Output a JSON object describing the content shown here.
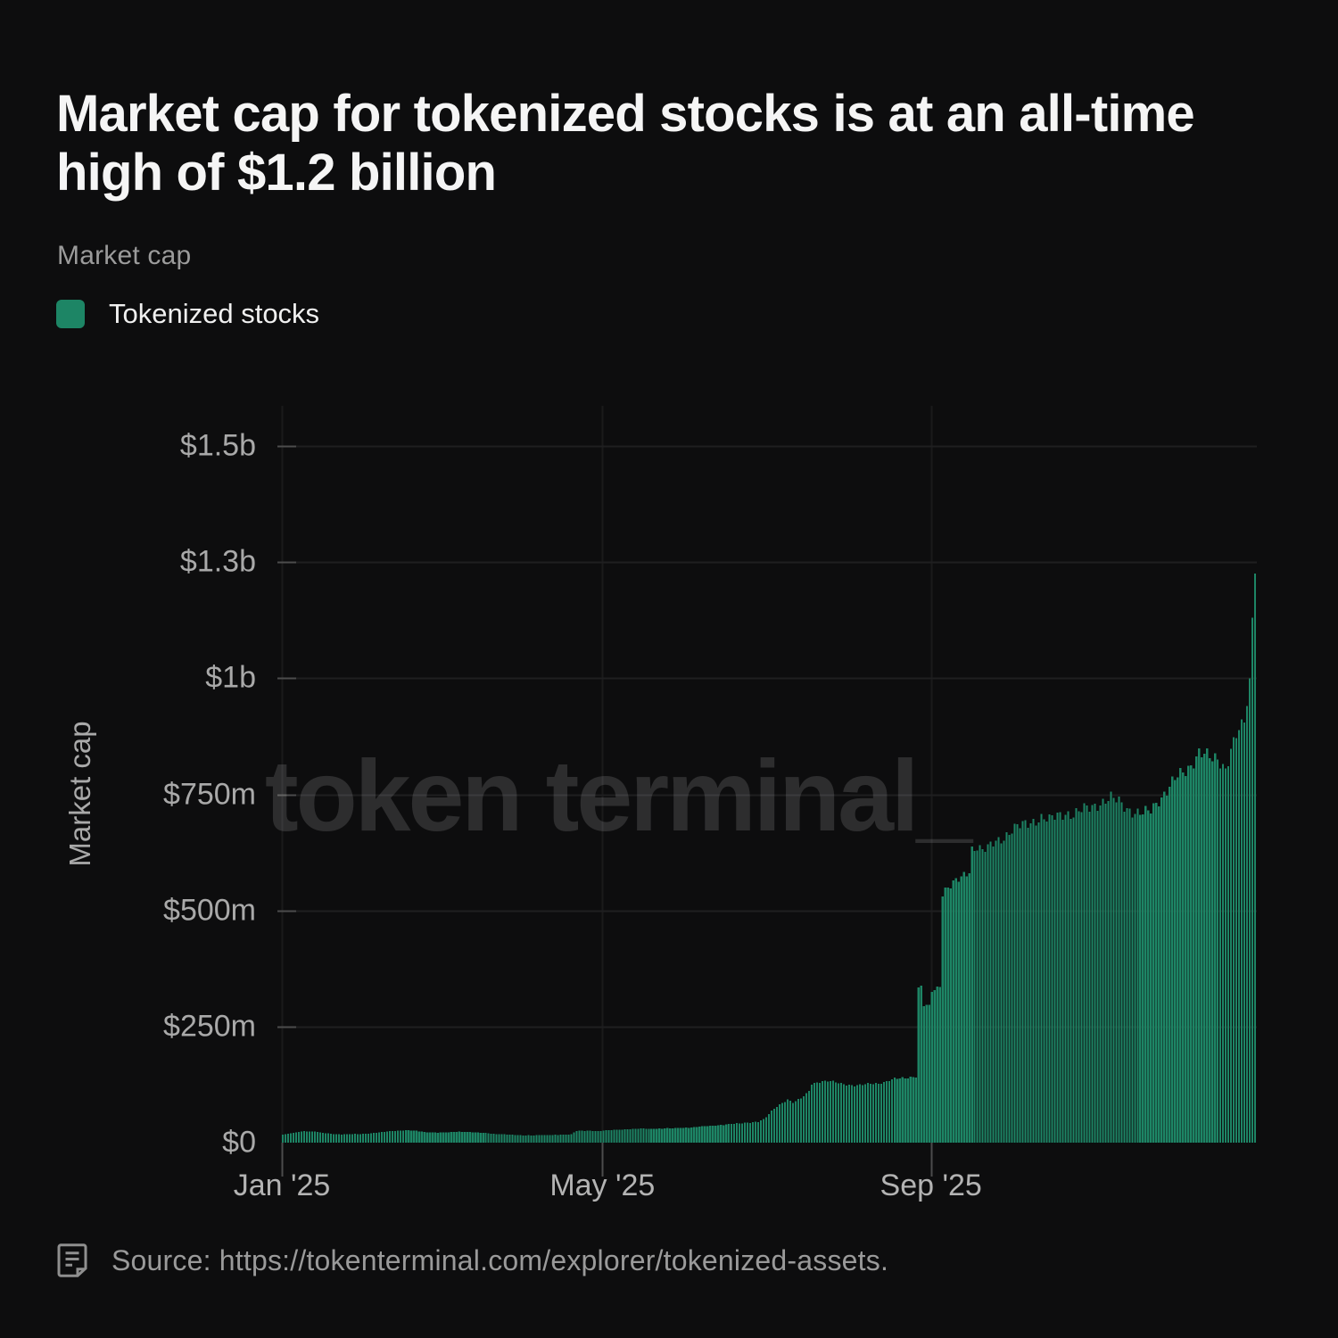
{
  "title": "Market cap for tokenized stocks is at an all-time high of $1.2 billion",
  "subtitle": "Market cap",
  "legend": {
    "label": "Tokenized stocks",
    "color": "#1d8565"
  },
  "watermark": "token terminal_",
  "footer": {
    "icon": "document-icon",
    "text": "Source: https://tokenterminal.com/explorer/tokenized-assets."
  },
  "colors": {
    "background": "#0d0d0e",
    "bar": "#1d8565",
    "gridline": "#1f1f20",
    "tick": "#4c4c4c",
    "month_line": "#1a1a1b",
    "axis_text": "#a9a9a9"
  },
  "chart_data": {
    "type": "bar",
    "title": "Market cap",
    "series_name": "Tokenized stocks",
    "ylabel": "Market cap",
    "unit": "USD millions",
    "x_start": "Jan 2025",
    "x_end": "Dec 2025",
    "days": 365,
    "ylim": [
      0,
      1500
    ],
    "grid": "horizontal-and-month-lines",
    "legend_position": "top-left",
    "yticks": [
      {
        "value": 0,
        "label": "$0"
      },
      {
        "value": 250,
        "label": "$250m"
      },
      {
        "value": 500,
        "label": "$500m"
      },
      {
        "value": 750,
        "label": "$750m"
      },
      {
        "value": 1000,
        "label": "$1b"
      },
      {
        "value": 1250,
        "label": "$1.3b"
      },
      {
        "value": 1500,
        "label": "$1.5b"
      }
    ],
    "xticks": [
      {
        "day": 0,
        "label": "Jan '25"
      },
      {
        "day": 120,
        "label": "May '25"
      },
      {
        "day": 243,
        "label": "Sep '25"
      }
    ],
    "anchors_day_value_musd": [
      [
        0,
        17
      ],
      [
        4,
        21
      ],
      [
        8,
        25
      ],
      [
        12,
        24
      ],
      [
        16,
        20
      ],
      [
        20,
        18
      ],
      [
        25,
        18
      ],
      [
        30,
        19
      ],
      [
        34,
        21
      ],
      [
        38,
        23
      ],
      [
        43,
        26
      ],
      [
        47,
        27
      ],
      [
        50,
        25
      ],
      [
        54,
        22
      ],
      [
        58,
        22
      ],
      [
        62,
        22
      ],
      [
        66,
        24
      ],
      [
        70,
        23
      ],
      [
        75,
        21
      ],
      [
        80,
        19
      ],
      [
        85,
        17
      ],
      [
        89,
        16
      ],
      [
        93,
        16
      ],
      [
        98,
        16
      ],
      [
        103,
        17
      ],
      [
        108,
        18
      ],
      [
        110,
        25
      ],
      [
        114,
        26
      ],
      [
        118,
        25
      ],
      [
        120,
        26
      ],
      [
        125,
        28
      ],
      [
        130,
        29
      ],
      [
        135,
        30
      ],
      [
        140,
        30
      ],
      [
        145,
        31
      ],
      [
        150,
        32
      ],
      [
        153,
        33
      ],
      [
        158,
        35
      ],
      [
        162,
        37
      ],
      [
        166,
        39
      ],
      [
        170,
        41
      ],
      [
        174,
        43
      ],
      [
        178,
        45
      ],
      [
        180,
        50
      ],
      [
        181,
        55
      ],
      [
        183,
        68
      ],
      [
        185,
        78
      ],
      [
        187,
        86
      ],
      [
        189,
        93
      ],
      [
        191,
        86
      ],
      [
        194,
        95
      ],
      [
        196,
        105
      ],
      [
        197,
        112
      ],
      [
        198,
        128
      ],
      [
        201,
        131
      ],
      [
        204,
        132
      ],
      [
        207,
        130
      ],
      [
        209,
        128
      ],
      [
        212,
        124
      ],
      [
        214,
        122
      ],
      [
        217,
        124
      ],
      [
        220,
        128
      ],
      [
        223,
        128
      ],
      [
        226,
        131
      ],
      [
        229,
        137
      ],
      [
        232,
        140
      ],
      [
        235,
        141
      ],
      [
        237,
        142
      ],
      [
        238,
        330
      ],
      [
        239,
        333
      ],
      [
        240,
        295
      ],
      [
        242,
        292
      ],
      [
        243,
        328
      ],
      [
        245,
        334
      ],
      [
        246,
        340
      ],
      [
        247,
        540
      ],
      [
        248,
        545
      ],
      [
        250,
        552
      ],
      [
        252,
        560
      ],
      [
        254,
        570
      ],
      [
        256,
        582
      ],
      [
        257,
        588
      ],
      [
        258,
        634
      ],
      [
        260,
        638
      ],
      [
        262,
        627
      ],
      [
        264,
        632
      ],
      [
        267,
        650
      ],
      [
        270,
        660
      ],
      [
        272,
        668
      ],
      [
        275,
        678
      ],
      [
        278,
        686
      ],
      [
        281,
        694
      ],
      [
        284,
        700
      ],
      [
        287,
        693
      ],
      [
        290,
        704
      ],
      [
        293,
        712
      ],
      [
        296,
        706
      ],
      [
        299,
        714
      ],
      [
        302,
        722
      ],
      [
        304,
        728
      ],
      [
        307,
        735
      ],
      [
        310,
        740
      ],
      [
        313,
        733
      ],
      [
        316,
        722
      ],
      [
        319,
        712
      ],
      [
        322,
        707
      ],
      [
        325,
        714
      ],
      [
        328,
        740
      ],
      [
        331,
        760
      ],
      [
        334,
        781
      ],
      [
        336,
        790
      ],
      [
        338,
        800
      ],
      [
        340,
        815
      ],
      [
        343,
        843
      ],
      [
        345,
        835
      ],
      [
        348,
        822
      ],
      [
        350,
        827
      ],
      [
        353,
        808
      ],
      [
        355,
        847
      ],
      [
        357,
        876
      ],
      [
        359,
        891
      ],
      [
        360,
        905
      ],
      [
        361,
        940
      ],
      [
        362,
        1000
      ],
      [
        363,
        1130
      ],
      [
        364,
        1225
      ]
    ]
  }
}
